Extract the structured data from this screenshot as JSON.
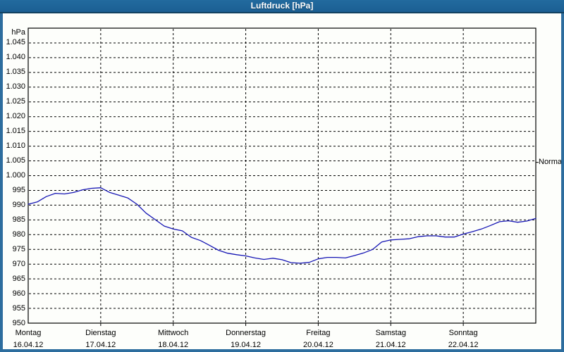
{
  "window": {
    "title": "Luftdruck [hPa]",
    "colors": {
      "titlebar": "#1d6296",
      "titlebar_edge": "#11405f",
      "frame": "#2d6d9e",
      "background": "#fdfefb",
      "title_text": "#ffffff"
    }
  },
  "chart_data": {
    "type": "line",
    "title": "Luftdruck [hPa]",
    "unit_label": "hPa",
    "xlabel": "",
    "ylabel": "hPa",
    "ylim": [
      950,
      1050
    ],
    "ytick_step": 5,
    "grid": "dashed-both-axes",
    "legend": "none",
    "line_color": "#1515b4",
    "grid_color": "#000000",
    "yticks": [
      {
        "value": 1045,
        "label": "1.045"
      },
      {
        "value": 1040,
        "label": "1.040"
      },
      {
        "value": 1035,
        "label": "1.035"
      },
      {
        "value": 1030,
        "label": "1.030"
      },
      {
        "value": 1025,
        "label": "1.025"
      },
      {
        "value": 1020,
        "label": "1.020"
      },
      {
        "value": 1015,
        "label": "1.015"
      },
      {
        "value": 1010,
        "label": "1.010"
      },
      {
        "value": 1005,
        "label": "1.005"
      },
      {
        "value": 1000,
        "label": "1.000"
      },
      {
        "value": 995,
        "label": "995"
      },
      {
        "value": 990,
        "label": "990"
      },
      {
        "value": 985,
        "label": "985"
      },
      {
        "value": 980,
        "label": "980"
      },
      {
        "value": 975,
        "label": "975"
      },
      {
        "value": 970,
        "label": "970"
      },
      {
        "value": 965,
        "label": "965"
      },
      {
        "value": 960,
        "label": "960"
      },
      {
        "value": 955,
        "label": "955"
      },
      {
        "value": 950,
        "label": "950"
      }
    ],
    "days": [
      {
        "label": "Montag",
        "date": "16.04.12"
      },
      {
        "label": "Dienstag",
        "date": "17.04.12"
      },
      {
        "label": "Mittwoch",
        "date": "18.04.12"
      },
      {
        "label": "Donnerstag",
        "date": "19.04.12"
      },
      {
        "label": "Freitag",
        "date": "20.04.12"
      },
      {
        "label": "Samstag",
        "date": "21.04.12"
      },
      {
        "label": "Sonntag",
        "date": "22.04.12"
      }
    ],
    "normal_marker": {
      "label": "Normal",
      "value": 1004.5
    },
    "series": [
      {
        "name": "Luftdruck",
        "interval_hours": 3,
        "start": "Montag 16.04.12 00:00",
        "values": [
          990.3,
          991.1,
          992.9,
          994.0,
          993.8,
          994.3,
          995.2,
          995.7,
          995.9,
          994.3,
          993.4,
          992.4,
          990.3,
          987.3,
          985.1,
          982.9,
          981.9,
          981.3,
          979.1,
          978.0,
          976.4,
          974.7,
          973.7,
          973.2,
          972.8,
          972.1,
          971.6,
          972.0,
          971.5,
          970.5,
          970.3,
          970.6,
          971.8,
          972.3,
          972.3,
          972.1,
          972.9,
          973.8,
          975.0,
          977.5,
          978.2,
          978.4,
          978.6,
          979.3,
          979.6,
          979.6,
          979.2,
          979.2,
          980.2,
          981.0,
          981.9,
          983.1,
          984.4,
          984.7,
          984.2,
          984.6,
          985.5
        ]
      }
    ]
  }
}
